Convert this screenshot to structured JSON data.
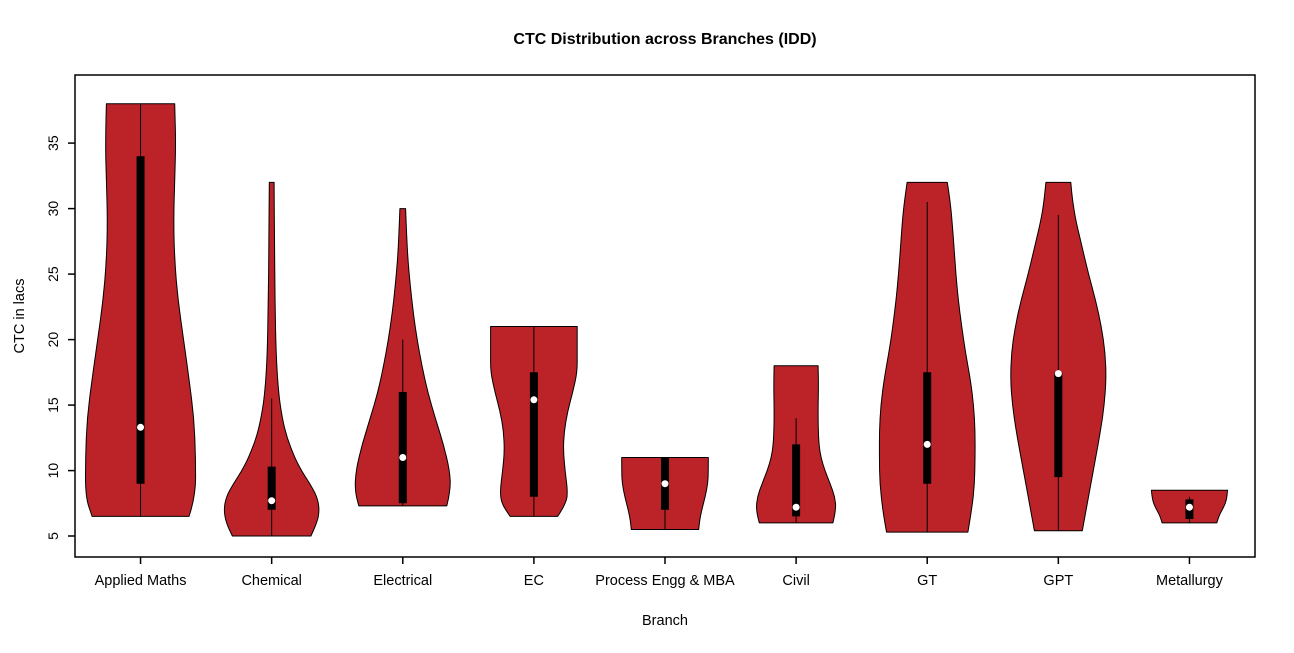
{
  "chart_data": {
    "type": "violin",
    "title": "CTC Distribution across Branches (IDD)",
    "xlabel": "Branch",
    "ylabel": "CTC in lacs",
    "ylim": [
      3.4,
      40.2
    ],
    "yticks": [
      5,
      10,
      15,
      20,
      25,
      30,
      35
    ],
    "grid": false,
    "legend": "none",
    "colors": {
      "violin_fill": "#BC2328",
      "violin_stroke": "#000000",
      "box": "#000000",
      "median_dot": "#FFFFFF",
      "background": "#FFFFFF",
      "frame": "#000000"
    },
    "categories": [
      "Applied Maths",
      "Chemical",
      "Electrical",
      "EC",
      "Process Engg & MBA",
      "Civil",
      "GT",
      "GPT",
      "Metallurgy"
    ],
    "violins": [
      {
        "name": "Applied Maths",
        "min": 6.5,
        "max": 38,
        "q1": 9,
        "q3": 34,
        "median": 13.3,
        "whisker_low": 6.5,
        "whisker_high": 38,
        "width": 0.84,
        "profile": [
          [
            6.5,
            0.88
          ],
          [
            8,
            1.0
          ],
          [
            11,
            1.0
          ],
          [
            14,
            0.97
          ],
          [
            17,
            0.88
          ],
          [
            20,
            0.78
          ],
          [
            23,
            0.68
          ],
          [
            26,
            0.62
          ],
          [
            29,
            0.6
          ],
          [
            32,
            0.62
          ],
          [
            35,
            0.64
          ],
          [
            38,
            0.62
          ]
        ]
      },
      {
        "name": "Chemical",
        "min": 5,
        "max": 32,
        "q1": 7,
        "q3": 10.3,
        "median": 7.7,
        "whisker_low": 5,
        "whisker_high": 15.5,
        "width": 0.73,
        "profile": [
          [
            5,
            0.82
          ],
          [
            6,
            0.95
          ],
          [
            7,
            1.0
          ],
          [
            8,
            0.95
          ],
          [
            9,
            0.8
          ],
          [
            10,
            0.62
          ],
          [
            11,
            0.48
          ],
          [
            12.5,
            0.32
          ],
          [
            14,
            0.22
          ],
          [
            16,
            0.14
          ],
          [
            19,
            0.09
          ],
          [
            23,
            0.07
          ],
          [
            27,
            0.06
          ],
          [
            32,
            0.05
          ]
        ]
      },
      {
        "name": "Electrical",
        "min": 7.3,
        "max": 30,
        "q1": 7.5,
        "q3": 16,
        "median": 11,
        "whisker_low": 7.3,
        "whisker_high": 20,
        "width": 0.73,
        "profile": [
          [
            7.3,
            0.92
          ],
          [
            8.5,
            1.0
          ],
          [
            10,
            0.98
          ],
          [
            12,
            0.85
          ],
          [
            14,
            0.68
          ],
          [
            16,
            0.52
          ],
          [
            18,
            0.4
          ],
          [
            20,
            0.3
          ],
          [
            22,
            0.22
          ],
          [
            24,
            0.16
          ],
          [
            26,
            0.11
          ],
          [
            28,
            0.08
          ],
          [
            30,
            0.06
          ]
        ]
      },
      {
        "name": "EC",
        "min": 6.5,
        "max": 21,
        "q1": 8,
        "q3": 17.5,
        "median": 15.4,
        "whisker_low": 6.5,
        "whisker_high": 21,
        "width": 0.66,
        "profile": [
          [
            6.5,
            0.55
          ],
          [
            7.5,
            0.75
          ],
          [
            8.5,
            0.78
          ],
          [
            10,
            0.72
          ],
          [
            11.5,
            0.68
          ],
          [
            13,
            0.7
          ],
          [
            14.5,
            0.78
          ],
          [
            16,
            0.9
          ],
          [
            17.5,
            1.0
          ],
          [
            19,
            1.0
          ],
          [
            21,
            1.0
          ]
        ]
      },
      {
        "name": "Process Engg & MBA",
        "min": 5.5,
        "max": 11,
        "q1": 7,
        "q3": 11,
        "median": 9,
        "whisker_low": 5.5,
        "whisker_high": 11,
        "width": 0.66,
        "profile": [
          [
            5.5,
            0.78
          ],
          [
            6.2,
            0.8
          ],
          [
            7,
            0.85
          ],
          [
            8,
            0.93
          ],
          [
            9,
            0.99
          ],
          [
            10,
            1.0
          ],
          [
            11,
            1.0
          ]
        ]
      },
      {
        "name": "Civil",
        "min": 6,
        "max": 18,
        "q1": 6.5,
        "q3": 12,
        "median": 7.2,
        "whisker_low": 6,
        "whisker_high": 14,
        "width": 0.61,
        "profile": [
          [
            6,
            0.92
          ],
          [
            7,
            1.0
          ],
          [
            8,
            0.97
          ],
          [
            9,
            0.85
          ],
          [
            10,
            0.72
          ],
          [
            11,
            0.62
          ],
          [
            12,
            0.57
          ],
          [
            13.5,
            0.55
          ],
          [
            15,
            0.55
          ],
          [
            16.5,
            0.56
          ],
          [
            18,
            0.55
          ]
        ]
      },
      {
        "name": "GT",
        "min": 5.3,
        "max": 32,
        "q1": 9,
        "q3": 17.5,
        "median": 12,
        "whisker_low": 5.3,
        "whisker_high": 30.5,
        "width": 0.73,
        "profile": [
          [
            5.3,
            0.85
          ],
          [
            7,
            0.93
          ],
          [
            9,
            0.99
          ],
          [
            11,
            1.0
          ],
          [
            13,
            1.0
          ],
          [
            15,
            0.97
          ],
          [
            17,
            0.9
          ],
          [
            19,
            0.8
          ],
          [
            21,
            0.72
          ],
          [
            23,
            0.65
          ],
          [
            25,
            0.6
          ],
          [
            27,
            0.56
          ],
          [
            29,
            0.52
          ],
          [
            30.5,
            0.48
          ],
          [
            32,
            0.42
          ]
        ]
      },
      {
        "name": "GPT",
        "min": 5.4,
        "max": 32,
        "q1": 9.5,
        "q3": 17.5,
        "median": 17.4,
        "whisker_low": 5.4,
        "whisker_high": 29.5,
        "width": 0.73,
        "profile": [
          [
            5.4,
            0.5
          ],
          [
            7,
            0.58
          ],
          [
            9,
            0.68
          ],
          [
            11,
            0.78
          ],
          [
            13,
            0.88
          ],
          [
            15,
            0.96
          ],
          [
            17,
            1.0
          ],
          [
            19,
            0.98
          ],
          [
            21,
            0.9
          ],
          [
            23,
            0.78
          ],
          [
            25,
            0.63
          ],
          [
            27,
            0.5
          ],
          [
            29,
            0.37
          ],
          [
            30.5,
            0.3
          ],
          [
            32,
            0.26
          ]
        ]
      },
      {
        "name": "Metallurgy",
        "min": 6,
        "max": 8.5,
        "q1": 6.3,
        "q3": 7.8,
        "median": 7.2,
        "whisker_low": 6,
        "whisker_high": 8,
        "width": 0.58,
        "profile": [
          [
            6,
            0.72
          ],
          [
            6.6,
            0.78
          ],
          [
            7.2,
            0.9
          ],
          [
            7.8,
            0.98
          ],
          [
            8.5,
            1.0
          ]
        ]
      }
    ]
  }
}
